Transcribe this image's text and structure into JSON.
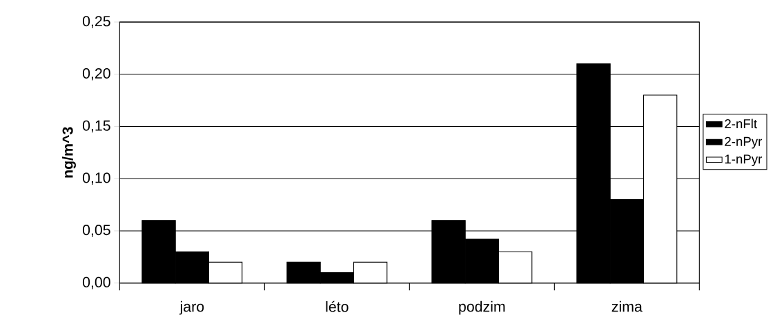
{
  "chart_data": {
    "type": "bar",
    "ylabel": "ng/m^3",
    "categories": [
      "jaro",
      "léto",
      "podzim",
      "zima"
    ],
    "series": [
      {
        "name": "2-nFlt",
        "color": "#000000",
        "values": [
          0.06,
          0.02,
          0.06,
          0.21
        ]
      },
      {
        "name": "2-nPyr",
        "color": "#000000",
        "values": [
          0.03,
          0.01,
          0.042,
          0.08
        ]
      },
      {
        "name": "1-nPyr",
        "color": "#ffffff",
        "values": [
          0.02,
          0.02,
          0.03,
          0.18
        ]
      }
    ],
    "ylim": [
      0,
      0.25
    ],
    "yticks": [
      {
        "value": 0,
        "label": "0,00"
      },
      {
        "value": 0.05,
        "label": "0,05"
      },
      {
        "value": 0.1,
        "label": "0,10"
      },
      {
        "value": 0.15,
        "label": "0,15"
      },
      {
        "value": 0.2,
        "label": "0,20"
      },
      {
        "value": 0.25,
        "label": "0,25"
      }
    ],
    "grid": "y",
    "legend": "right"
  }
}
